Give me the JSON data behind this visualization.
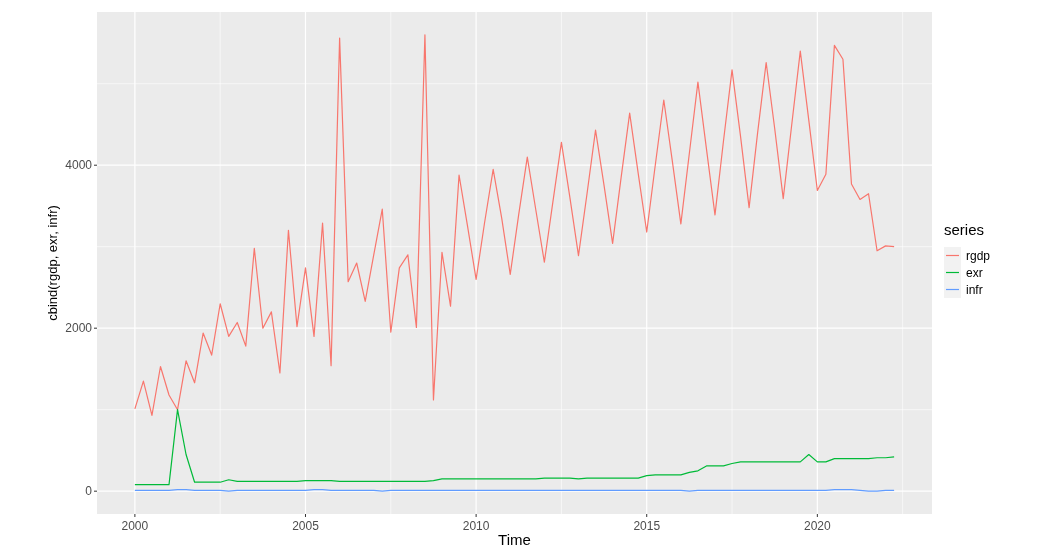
{
  "chart_data": {
    "type": "line",
    "xlabel": "Time",
    "ylabel": "cbind(rgdp, exr, infr)",
    "legend_title": "series",
    "legend": "right",
    "grid": true,
    "x": [
      2000,
      2000.25,
      2000.5,
      2000.75,
      2001,
      2001.25,
      2001.5,
      2001.75,
      2002,
      2002.25,
      2002.5,
      2002.75,
      2003,
      2003.25,
      2003.5,
      2003.75,
      2004,
      2004.25,
      2004.5,
      2004.75,
      2005,
      2005.25,
      2005.5,
      2005.75,
      2006,
      2006.25,
      2006.5,
      2006.75,
      2007,
      2007.25,
      2007.5,
      2007.75,
      2008,
      2008.25,
      2008.5,
      2008.75,
      2009,
      2009.25,
      2009.5,
      2009.75,
      2010,
      2010.25,
      2010.5,
      2010.75,
      2011,
      2011.25,
      2011.5,
      2011.75,
      2012,
      2012.25,
      2012.5,
      2012.75,
      2013,
      2013.25,
      2013.5,
      2013.75,
      2014,
      2014.25,
      2014.5,
      2014.75,
      2015,
      2015.25,
      2015.5,
      2015.75,
      2016,
      2016.25,
      2016.5,
      2016.75,
      2017,
      2017.25,
      2017.5,
      2017.75,
      2018,
      2018.25,
      2018.5,
      2018.75,
      2019,
      2019.25,
      2019.5,
      2019.75,
      2020,
      2020.25,
      2020.5,
      2020.75,
      2021,
      2021.25,
      2021.5,
      2021.75,
      2022,
      2022.25
    ],
    "series": [
      {
        "name": "rgdp",
        "color": "#f8766d",
        "values": [
          1010,
          1350,
          930,
          1530,
          1180,
          1000,
          1600,
          1330,
          1940,
          1670,
          2300,
          1900,
          2070,
          1780,
          2980,
          2000,
          2200,
          1450,
          3200,
          2020,
          2740,
          1900,
          3290,
          1540,
          5560,
          2570,
          2800,
          2330,
          2900,
          3460,
          1950,
          2740,
          2900,
          2010,
          5600,
          1120,
          2930,
          2270,
          3880,
          3250,
          2600,
          3300,
          3950,
          3350,
          2660,
          3400,
          4100,
          3450,
          2810,
          3550,
          4280,
          3600,
          2890,
          3650,
          4430,
          3750,
          3040,
          3850,
          4640,
          3900,
          3180,
          4000,
          4800,
          4050,
          3280,
          4150,
          5020,
          4200,
          3390,
          4300,
          5170,
          4350,
          3480,
          4400,
          5260,
          4450,
          3590,
          4500,
          5400,
          4550,
          3690,
          3890,
          5470,
          5300,
          3770,
          3580,
          3650,
          2950,
          3010,
          3000
        ]
      },
      {
        "name": "exr",
        "color": "#00ba38",
        "values": [
          80,
          80,
          80,
          80,
          80,
          1000,
          450,
          110,
          110,
          110,
          110,
          140,
          120,
          120,
          120,
          120,
          120,
          120,
          120,
          120,
          130,
          130,
          130,
          130,
          120,
          120,
          120,
          120,
          120,
          120,
          120,
          120,
          120,
          120,
          120,
          130,
          150,
          150,
          150,
          150,
          150,
          150,
          150,
          150,
          150,
          150,
          150,
          150,
          160,
          160,
          160,
          160,
          150,
          160,
          160,
          160,
          160,
          160,
          160,
          160,
          190,
          200,
          200,
          200,
          200,
          230,
          250,
          310,
          310,
          310,
          340,
          360,
          360,
          360,
          360,
          360,
          360,
          360,
          360,
          450,
          360,
          360,
          400,
          400,
          400,
          400,
          400,
          410,
          410,
          420
        ]
      },
      {
        "name": "infr",
        "color": "#619cff",
        "values": [
          10,
          10,
          10,
          10,
          10,
          20,
          20,
          10,
          10,
          10,
          10,
          0,
          10,
          10,
          10,
          10,
          10,
          10,
          10,
          10,
          10,
          20,
          20,
          10,
          10,
          10,
          10,
          10,
          10,
          0,
          10,
          10,
          10,
          10,
          10,
          10,
          10,
          10,
          10,
          10,
          10,
          10,
          10,
          10,
          10,
          10,
          10,
          10,
          10,
          10,
          10,
          10,
          10,
          10,
          10,
          10,
          10,
          10,
          10,
          10,
          10,
          10,
          10,
          10,
          10,
          0,
          10,
          10,
          10,
          10,
          10,
          10,
          10,
          10,
          10,
          10,
          10,
          10,
          10,
          10,
          10,
          10,
          20,
          20,
          20,
          10,
          0,
          0,
          10,
          10
        ]
      }
    ],
    "xlim": [
      1998.89,
      2023.36
    ],
    "ylim": [
      -280,
      5880
    ],
    "xticks": [
      2000,
      2005,
      2010,
      2015,
      2020
    ],
    "yticks": [
      0,
      2000,
      4000
    ]
  }
}
